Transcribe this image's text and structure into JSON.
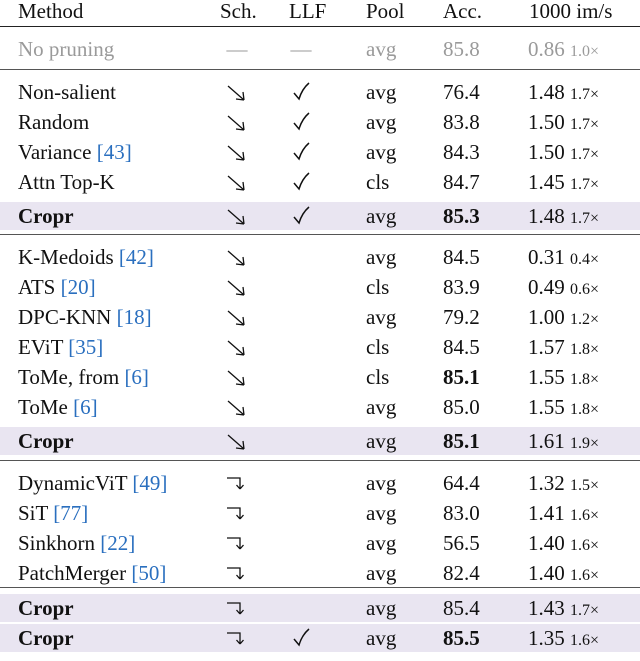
{
  "header": {
    "method": "Method",
    "sch": "Sch.",
    "llf": "LLF",
    "pool": "Pool",
    "acc": "Acc.",
    "speed": "1000 im/s"
  },
  "baseline": {
    "method": "No pruning",
    "sch": "—",
    "llf": "—",
    "pool": "avg",
    "acc": "85.8",
    "speed": "0.86",
    "mult": "1.0×"
  },
  "groups": [
    {
      "rows": [
        {
          "method": "Non-salient",
          "ref": "",
          "sch": "dec",
          "llf": true,
          "pool": "avg",
          "acc": "76.4",
          "acc_bold": false,
          "speed": "1.48",
          "mult": "1.7×",
          "highlight": false,
          "method_bold": false
        },
        {
          "method": "Random",
          "ref": "",
          "sch": "dec",
          "llf": true,
          "pool": "avg",
          "acc": "83.8",
          "acc_bold": false,
          "speed": "1.50",
          "mult": "1.7×",
          "highlight": false,
          "method_bold": false
        },
        {
          "method": "Variance",
          "ref": "43",
          "sch": "dec",
          "llf": true,
          "pool": "avg",
          "acc": "84.3",
          "acc_bold": false,
          "speed": "1.50",
          "mult": "1.7×",
          "highlight": false,
          "method_bold": false
        },
        {
          "method": "Attn Top-K",
          "ref": "",
          "sch": "dec",
          "llf": true,
          "pool": "cls",
          "acc": "84.7",
          "acc_bold": false,
          "speed": "1.45",
          "mult": "1.7×",
          "highlight": false,
          "method_bold": false
        },
        {
          "method": "Cropr",
          "ref": "",
          "sch": "dec",
          "llf": true,
          "pool": "avg",
          "acc": "85.3",
          "acc_bold": true,
          "speed": "1.48",
          "mult": "1.7×",
          "highlight": true,
          "method_bold": true
        }
      ]
    },
    {
      "rows": [
        {
          "method": "K-Medoids",
          "ref": "42",
          "sch": "dec",
          "llf": false,
          "pool": "avg",
          "acc": "84.5",
          "acc_bold": false,
          "speed": "0.31",
          "mult": "0.4×",
          "highlight": false,
          "method_bold": false
        },
        {
          "method": "ATS",
          "ref": "20",
          "sch": "dec",
          "llf": false,
          "pool": "cls",
          "acc": "83.9",
          "acc_bold": false,
          "speed": "0.49",
          "mult": "0.6×",
          "highlight": false,
          "method_bold": false
        },
        {
          "method": "DPC-KNN",
          "ref": "18",
          "sch": "dec",
          "llf": false,
          "pool": "avg",
          "acc": "79.2",
          "acc_bold": false,
          "speed": "1.00",
          "mult": "1.2×",
          "highlight": false,
          "method_bold": false
        },
        {
          "method": "EViT",
          "ref": "35",
          "sch": "dec",
          "llf": false,
          "pool": "cls",
          "acc": "84.5",
          "acc_bold": false,
          "speed": "1.57",
          "mult": "1.8×",
          "highlight": false,
          "method_bold": false
        },
        {
          "method": "ToMe, from",
          "ref": "6",
          "sch": "dec",
          "llf": false,
          "pool": "cls",
          "acc": "85.1",
          "acc_bold": true,
          "speed": "1.55",
          "mult": "1.8×",
          "highlight": false,
          "method_bold": false
        },
        {
          "method": "ToMe",
          "ref": "6",
          "sch": "dec",
          "llf": false,
          "pool": "avg",
          "acc": "85.0",
          "acc_bold": false,
          "speed": "1.55",
          "mult": "1.8×",
          "highlight": false,
          "method_bold": false
        },
        {
          "method": "Cropr",
          "ref": "",
          "sch": "dec",
          "llf": false,
          "pool": "avg",
          "acc": "85.1",
          "acc_bold": true,
          "speed": "1.61",
          "mult": "1.9×",
          "highlight": true,
          "method_bold": true
        }
      ]
    },
    {
      "rows": [
        {
          "method": "DynamicViT",
          "ref": "49",
          "sch": "step",
          "llf": false,
          "pool": "avg",
          "acc": "64.4",
          "acc_bold": false,
          "speed": "1.32",
          "mult": "1.5×",
          "highlight": false,
          "method_bold": false
        },
        {
          "method": "SiT",
          "ref": "77",
          "sch": "step",
          "llf": false,
          "pool": "avg",
          "acc": "83.0",
          "acc_bold": false,
          "speed": "1.41",
          "mult": "1.6×",
          "highlight": false,
          "method_bold": false
        },
        {
          "method": "Sinkhorn",
          "ref": "22",
          "sch": "step",
          "llf": false,
          "pool": "avg",
          "acc": "56.5",
          "acc_bold": false,
          "speed": "1.40",
          "mult": "1.6×",
          "highlight": false,
          "method_bold": false
        },
        {
          "method": "PatchMerger",
          "ref": "50",
          "sch": "step",
          "llf": false,
          "pool": "avg",
          "acc": "82.4",
          "acc_bold": false,
          "speed": "1.40",
          "mult": "1.6×",
          "highlight": false,
          "method_bold": false
        }
      ]
    },
    {
      "rows": [
        {
          "method": "Cropr",
          "ref": "",
          "sch": "step",
          "llf": false,
          "pool": "avg",
          "acc": "85.4",
          "acc_bold": false,
          "speed": "1.43",
          "mult": "1.7×",
          "highlight": true,
          "method_bold": true
        },
        {
          "method": "Cropr",
          "ref": "",
          "sch": "step",
          "llf": true,
          "pool": "avg",
          "acc": "85.5",
          "acc_bold": true,
          "speed": "1.35",
          "mult": "1.6×",
          "highlight": true,
          "method_bold": true
        }
      ]
    }
  ]
}
